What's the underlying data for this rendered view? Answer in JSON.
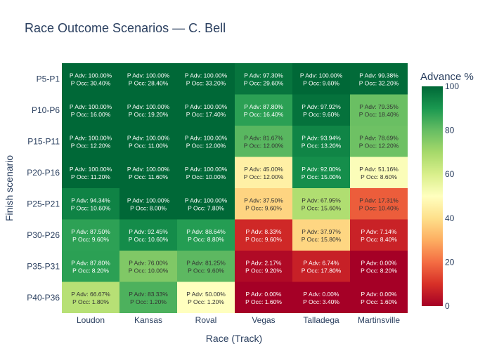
{
  "chart_data": {
    "type": "heatmap",
    "title": "Race Outcome Scenarios — C. Bell",
    "xlabel": "Race (Track)",
    "ylabel": "Finish scenario",
    "colorbar_title": "Advance %",
    "colorbar_ticks": [
      "0",
      "20",
      "40",
      "60",
      "80",
      "100"
    ],
    "zlim": [
      0,
      100
    ],
    "colorscale": "RdYlGn",
    "x": [
      "Loudon",
      "Kansas",
      "Roval",
      "Vegas",
      "Talladega",
      "Martinsville"
    ],
    "y": [
      "P5-P1",
      "P10-P6",
      "P15-P11",
      "P20-P16",
      "P25-P21",
      "P30-P26",
      "P35-P31",
      "P40-P36"
    ],
    "cells": [
      [
        [
          "100.00%",
          "30.40%"
        ],
        [
          "100.00%",
          "28.40%"
        ],
        [
          "100.00%",
          "33.20%"
        ],
        [
          "97.30%",
          "29.60%"
        ],
        [
          "100.00%",
          "9.60%"
        ],
        [
          "99.38%",
          "32.20%"
        ]
      ],
      [
        [
          "100.00%",
          "16.00%"
        ],
        [
          "100.00%",
          "19.20%"
        ],
        [
          "100.00%",
          "17.40%"
        ],
        [
          "87.80%",
          "16.40%"
        ],
        [
          "97.92%",
          "9.60%"
        ],
        [
          "79.35%",
          "18.40%"
        ]
      ],
      [
        [
          "100.00%",
          "12.20%"
        ],
        [
          "100.00%",
          "11.00%"
        ],
        [
          "100.00%",
          "12.00%"
        ],
        [
          "81.67%",
          "12.00%"
        ],
        [
          "93.94%",
          "13.20%"
        ],
        [
          "78.69%",
          "12.20%"
        ]
      ],
      [
        [
          "100.00%",
          "11.20%"
        ],
        [
          "100.00%",
          "11.60%"
        ],
        [
          "100.00%",
          "10.00%"
        ],
        [
          "45.00%",
          "12.00%"
        ],
        [
          "92.00%",
          "15.00%"
        ],
        [
          "51.16%",
          "8.60%"
        ]
      ],
      [
        [
          "94.34%",
          "10.60%"
        ],
        [
          "100.00%",
          "8.00%"
        ],
        [
          "100.00%",
          "7.80%"
        ],
        [
          "37.50%",
          "9.60%"
        ],
        [
          "67.95%",
          "15.60%"
        ],
        [
          "17.31%",
          "10.40%"
        ]
      ],
      [
        [
          "87.50%",
          "9.60%"
        ],
        [
          "92.45%",
          "10.60%"
        ],
        [
          "88.64%",
          "8.80%"
        ],
        [
          "8.33%",
          "9.60%"
        ],
        [
          "37.97%",
          "15.80%"
        ],
        [
          "7.14%",
          "8.40%"
        ]
      ],
      [
        [
          "87.80%",
          "8.20%"
        ],
        [
          "76.00%",
          "10.00%"
        ],
        [
          "81.25%",
          "9.60%"
        ],
        [
          "2.17%",
          "9.20%"
        ],
        [
          "6.74%",
          "17.80%"
        ],
        [
          "0.00%",
          "8.20%"
        ]
      ],
      [
        [
          "66.67%",
          "1.80%"
        ],
        [
          "83.33%",
          "1.20%"
        ],
        [
          "50.00%",
          "1.20%"
        ],
        [
          "0.00%",
          "1.60%"
        ],
        [
          "0.00%",
          "3.40%"
        ],
        [
          "0.00%",
          "1.60%"
        ]
      ]
    ],
    "cell_text_prefix": [
      "P Adv: ",
      "P Occ: "
    ]
  }
}
